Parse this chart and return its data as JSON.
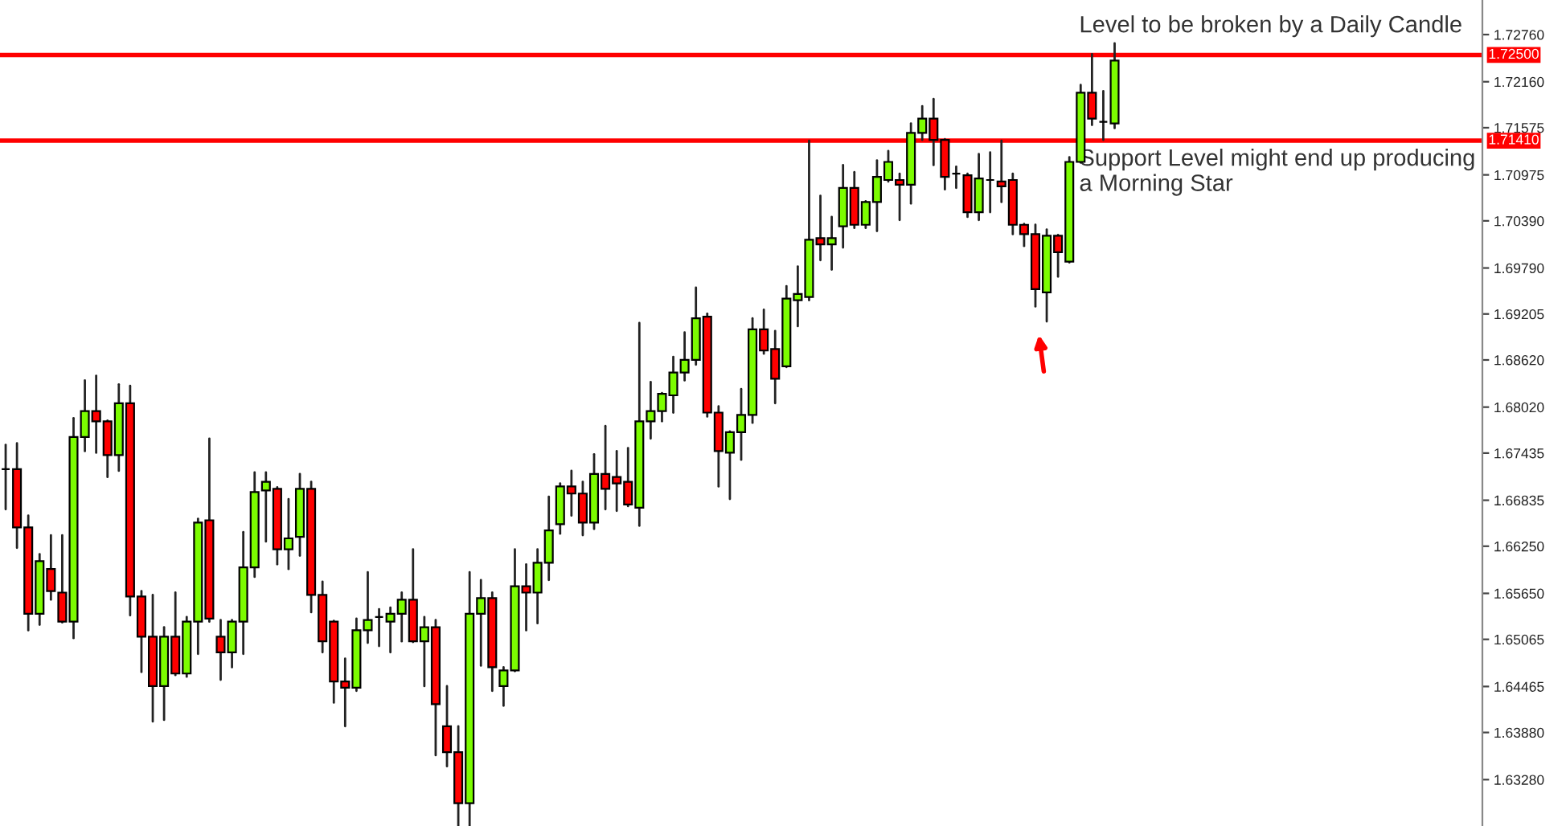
{
  "chart_data": {
    "type": "candlestick",
    "categories": [
      null,
      null,
      null,
      null,
      null,
      null,
      null,
      null,
      null,
      null,
      null,
      null,
      null,
      null,
      null,
      null,
      null,
      null,
      null,
      null,
      null,
      null,
      null,
      null,
      null,
      null,
      null,
      null,
      null,
      null,
      null,
      null,
      null,
      null,
      null,
      null,
      null,
      null,
      null,
      null,
      null,
      null,
      null,
      null,
      null,
      null,
      null,
      null,
      null,
      null,
      null,
      null,
      null,
      null,
      null,
      null,
      null,
      null,
      null,
      null,
      null,
      null,
      null,
      null,
      null,
      null,
      null,
      null,
      null,
      null,
      null,
      null,
      null,
      null,
      null,
      null,
      null,
      null,
      null,
      null,
      null,
      null,
      null,
      null,
      null,
      null,
      null,
      null,
      null,
      null,
      null,
      null,
      null,
      null,
      null,
      null,
      null,
      null,
      null,
      null,
      null,
      null,
      null,
      null,
      null,
      null,
      null,
      null,
      null,
      null,
      null,
      null,
      null,
      null,
      null,
      null,
      null,
      null,
      null,
      null,
      null,
      null,
      null,
      null,
      null,
      null,
      null,
      null,
      null,
      null,
      null
    ],
    "ohlc": [
      [
        1.6723,
        1.6754,
        1.6672,
        1.6723
      ],
      [
        1.6723,
        1.6756,
        1.6623,
        1.6649
      ],
      [
        1.6649,
        1.6664,
        1.6518,
        1.6539
      ],
      [
        1.6539,
        1.6615,
        1.6525,
        1.6606
      ],
      [
        1.6596,
        1.6639,
        1.6557,
        1.6568
      ],
      [
        1.6566,
        1.6639,
        1.6528,
        1.6529
      ],
      [
        1.6529,
        1.6788,
        1.6508,
        1.6764
      ],
      [
        1.6764,
        1.6836,
        1.6746,
        1.6797
      ],
      [
        1.6797,
        1.6842,
        1.6744,
        1.6784
      ],
      [
        1.6784,
        1.6785,
        1.6713,
        1.6741
      ],
      [
        1.6741,
        1.6831,
        1.6721,
        1.6807
      ],
      [
        1.6807,
        1.6829,
        1.6537,
        1.6561
      ],
      [
        1.6561,
        1.6568,
        1.6465,
        1.651
      ],
      [
        1.651,
        1.6563,
        1.6402,
        1.6447
      ],
      [
        1.6447,
        1.6522,
        1.6404,
        1.651
      ],
      [
        1.651,
        1.6566,
        1.6461,
        1.6463
      ],
      [
        1.6463,
        1.6535,
        1.6459,
        1.6529
      ],
      [
        1.6529,
        1.666,
        1.6488,
        1.6655
      ],
      [
        1.6658,
        1.6762,
        1.6529,
        1.6533
      ],
      [
        1.651,
        1.6531,
        1.6455,
        1.649
      ],
      [
        1.649,
        1.6531,
        1.6471,
        1.6529
      ],
      [
        1.6529,
        1.6643,
        1.6488,
        1.6598
      ],
      [
        1.6598,
        1.6719,
        1.6586,
        1.6694
      ],
      [
        1.6696,
        1.6719,
        1.6631,
        1.6707
      ],
      [
        1.6698,
        1.67,
        1.6602,
        1.6621
      ],
      [
        1.6621,
        1.6685,
        1.6596,
        1.6635
      ],
      [
        1.6637,
        1.6717,
        1.6613,
        1.6698
      ],
      [
        1.6698,
        1.6707,
        1.6541,
        1.6563
      ],
      [
        1.6563,
        1.658,
        1.649,
        1.6504
      ],
      [
        1.6529,
        1.653,
        1.6426,
        1.6453
      ],
      [
        1.6453,
        1.6482,
        1.6396,
        1.6445
      ],
      [
        1.6445,
        1.6533,
        1.6441,
        1.6518
      ],
      [
        1.6518,
        1.6592,
        1.6502,
        1.6531
      ],
      [
        1.6535,
        1.6545,
        1.6498,
        1.6535
      ],
      [
        1.6529,
        1.6547,
        1.649,
        1.6539
      ],
      [
        1.6539,
        1.6566,
        1.6504,
        1.6557
      ],
      [
        1.6557,
        1.6621,
        1.6503,
        1.6504
      ],
      [
        1.6504,
        1.6535,
        1.6447,
        1.6522
      ],
      [
        1.6522,
        1.6531,
        1.6359,
        1.6424
      ],
      [
        1.6396,
        1.6447,
        1.6345,
        1.6363
      ],
      [
        1.6363,
        1.6396,
        1.6267,
        1.6298
      ],
      [
        1.6298,
        1.6592,
        1.6267,
        1.6539
      ],
      [
        1.6539,
        1.6582,
        1.6473,
        1.6559
      ],
      [
        1.6559,
        1.6566,
        1.6441,
        1.6471
      ],
      [
        1.6447,
        1.6471,
        1.6422,
        1.6467
      ],
      [
        1.6467,
        1.6621,
        1.6466,
        1.6574
      ],
      [
        1.6574,
        1.6602,
        1.6518,
        1.6566
      ],
      [
        1.6566,
        1.6621,
        1.6527,
        1.6604
      ],
      [
        1.6604,
        1.6688,
        1.6582,
        1.6645
      ],
      [
        1.6653,
        1.6705,
        1.6641,
        1.6701
      ],
      [
        1.6701,
        1.6721,
        1.6664,
        1.6692
      ],
      [
        1.6692,
        1.6707,
        1.6639,
        1.6655
      ],
      [
        1.6655,
        1.6742,
        1.6647,
        1.6717
      ],
      [
        1.6717,
        1.6778,
        1.6672,
        1.6698
      ],
      [
        1.6713,
        1.6746,
        1.667,
        1.6705
      ],
      [
        1.6707,
        1.675,
        1.6676,
        1.6678
      ],
      [
        1.6674,
        1.6909,
        1.6651,
        1.6784
      ],
      [
        1.6784,
        1.6834,
        1.6762,
        1.6797
      ],
      [
        1.6797,
        1.682,
        1.6784,
        1.6819
      ],
      [
        1.6817,
        1.6866,
        1.6795,
        1.6846
      ],
      [
        1.6846,
        1.6897,
        1.6836,
        1.6862
      ],
      [
        1.6862,
        1.6954,
        1.6856,
        1.6915
      ],
      [
        1.6917,
        1.6921,
        1.679,
        1.6795
      ],
      [
        1.6795,
        1.6803,
        1.6701,
        1.6746
      ],
      [
        1.6744,
        1.6771,
        1.6685,
        1.677
      ],
      [
        1.677,
        1.6825,
        1.6735,
        1.6792
      ],
      [
        1.6792,
        1.6915,
        1.6782,
        1.6901
      ],
      [
        1.6901,
        1.6926,
        1.687,
        1.6874
      ],
      [
        1.6876,
        1.6899,
        1.6807,
        1.6838
      ],
      [
        1.6854,
        1.6956,
        1.6853,
        1.694
      ],
      [
        1.6938,
        1.6981,
        1.6905,
        1.6946
      ],
      [
        1.6942,
        1.7141,
        1.6938,
        1.7015
      ],
      [
        1.7017,
        1.7071,
        1.6989,
        1.7009
      ],
      [
        1.7009,
        1.7044,
        1.6977,
        1.7017
      ],
      [
        1.7032,
        1.711,
        1.7005,
        1.7081
      ],
      [
        1.7081,
        1.7101,
        1.703,
        1.7034
      ],
      [
        1.7034,
        1.7064,
        1.703,
        1.7063
      ],
      [
        1.7063,
        1.7116,
        1.7026,
        1.7095
      ],
      [
        1.7091,
        1.7128,
        1.7089,
        1.7114
      ],
      [
        1.7091,
        1.7099,
        1.704,
        1.7085
      ],
      [
        1.7085,
        1.7163,
        1.7061,
        1.7151
      ],
      [
        1.7151,
        1.7185,
        1.7142,
        1.7169
      ],
      [
        1.7169,
        1.7194,
        1.711,
        1.7142
      ],
      [
        1.7142,
        1.7143,
        1.7079,
        1.7095
      ],
      [
        1.7099,
        1.7108,
        1.7081,
        1.7099
      ],
      [
        1.7097,
        1.7099,
        1.7044,
        1.705
      ],
      [
        1.705,
        1.7124,
        1.704,
        1.7093
      ],
      [
        1.7091,
        1.7126,
        1.705,
        1.7091
      ],
      [
        1.7089,
        1.7141,
        1.7063,
        1.7083
      ],
      [
        1.7091,
        1.7099,
        1.7022,
        1.7034
      ],
      [
        1.7034,
        1.7035,
        1.7007,
        1.7022
      ],
      [
        1.7022,
        1.7034,
        1.693,
        1.6952
      ],
      [
        1.6948,
        1.7028,
        1.6911,
        1.702
      ],
      [
        1.702,
        1.7021,
        1.6968,
        1.6999
      ],
      [
        1.6987,
        1.712,
        1.6986,
        1.7114
      ],
      [
        1.7114,
        1.7212,
        1.7113,
        1.7202
      ],
      [
        1.7202,
        1.7251,
        1.7161,
        1.7169
      ],
      [
        1.7165,
        1.7204,
        1.7142,
        1.7165
      ],
      [
        1.7163,
        1.7265,
        1.7157,
        1.7243
      ],
      null,
      null,
      null,
      null,
      null,
      null,
      null,
      null,
      null,
      null,
      null,
      null,
      null,
      null,
      null,
      null,
      null,
      null,
      null,
      null,
      null,
      null,
      null,
      null,
      null,
      null,
      null,
      null,
      null,
      null,
      null,
      null
    ],
    "colors": [
      "#000000",
      "#ff0000",
      "#ff0000",
      "#7cfc00",
      "#ff0000",
      "#ff0000",
      "#7cfc00",
      "#7cfc00",
      "#ff0000",
      "#ff0000",
      "#7cfc00",
      "#ff0000",
      "#ff0000",
      "#ff0000",
      "#7cfc00",
      "#ff0000",
      "#7cfc00",
      "#7cfc00",
      "#ff0000",
      "#ff0000",
      "#7cfc00",
      "#7cfc00",
      "#7cfc00",
      "#7cfc00",
      "#ff0000",
      "#7cfc00",
      "#7cfc00",
      "#ff0000",
      "#ff0000",
      "#ff0000",
      "#ff0000",
      "#7cfc00",
      "#7cfc00",
      "#000000",
      "#7cfc00",
      "#7cfc00",
      "#ff0000",
      "#7cfc00",
      "#ff0000",
      "#ff0000",
      "#ff0000",
      "#7cfc00",
      "#7cfc00",
      "#ff0000",
      "#7cfc00",
      "#7cfc00",
      "#ff0000",
      "#7cfc00",
      "#7cfc00",
      "#7cfc00",
      "#ff0000",
      "#ff0000",
      "#7cfc00",
      "#ff0000",
      "#ff0000",
      "#ff0000",
      "#7cfc00",
      "#7cfc00",
      "#7cfc00",
      "#7cfc00",
      "#7cfc00",
      "#7cfc00",
      "#ff0000",
      "#ff0000",
      "#7cfc00",
      "#7cfc00",
      "#7cfc00",
      "#ff0000",
      "#ff0000",
      "#7cfc00",
      "#7cfc00",
      "#7cfc00",
      "#ff0000",
      "#7cfc00",
      "#7cfc00",
      "#ff0000",
      "#7cfc00",
      "#7cfc00",
      "#7cfc00",
      "#ff0000",
      "#7cfc00",
      "#7cfc00",
      "#ff0000",
      "#ff0000",
      "#000000",
      "#ff0000",
      "#7cfc00",
      "#000000",
      "#ff0000",
      "#ff0000",
      "#ff0000",
      "#ff0000",
      "#7cfc00",
      "#ff0000",
      "#7cfc00",
      "#7cfc00",
      "#ff0000",
      "#000000",
      "#7cfc00",
      null,
      null,
      null,
      null,
      null,
      null,
      null,
      null,
      null,
      null,
      null,
      null,
      null,
      null,
      null,
      null,
      null,
      null,
      null,
      null,
      null,
      null,
      null,
      null,
      null,
      null,
      null,
      null,
      null,
      null,
      null,
      null
    ],
    "ylim": [
      1.6269,
      1.732
    ],
    "yticks": [
      {
        "value": 1.7276,
        "label": "1.72760"
      },
      {
        "value": 1.7216,
        "label": "1.72160"
      },
      {
        "value": 1.71575,
        "label": "1.71575"
      },
      {
        "value": 1.70975,
        "label": "1.70975"
      },
      {
        "value": 1.7039,
        "label": "1.70390"
      },
      {
        "value": 1.6979,
        "label": "1.69790"
      },
      {
        "value": 1.69205,
        "label": "1.69205"
      },
      {
        "value": 1.6862,
        "label": "1.68620"
      },
      {
        "value": 1.6802,
        "label": "1.68020"
      },
      {
        "value": 1.67435,
        "label": "1.67435"
      },
      {
        "value": 1.66835,
        "label": "1.66835"
      },
      {
        "value": 1.6625,
        "label": "1.66250"
      },
      {
        "value": 1.6565,
        "label": "1.65650"
      },
      {
        "value": 1.65065,
        "label": "1.65065"
      },
      {
        "value": 1.64465,
        "label": "1.64465"
      },
      {
        "value": 1.6388,
        "label": "1.63880"
      },
      {
        "value": 1.6328,
        "label": "1.63280"
      }
    ],
    "ref_lines": [
      {
        "axis": "y",
        "value": 1.725,
        "label": "1.72500",
        "color": "#ff0000"
      },
      {
        "axis": "y",
        "value": 1.7141,
        "label": "1.71410",
        "color": "#ff0000"
      }
    ],
    "annotations": [
      "Level to be broken by a Daily Candle",
      "Support Level might end up producing\na Morning Star"
    ],
    "tick_labels": "y",
    "grid": false
  }
}
